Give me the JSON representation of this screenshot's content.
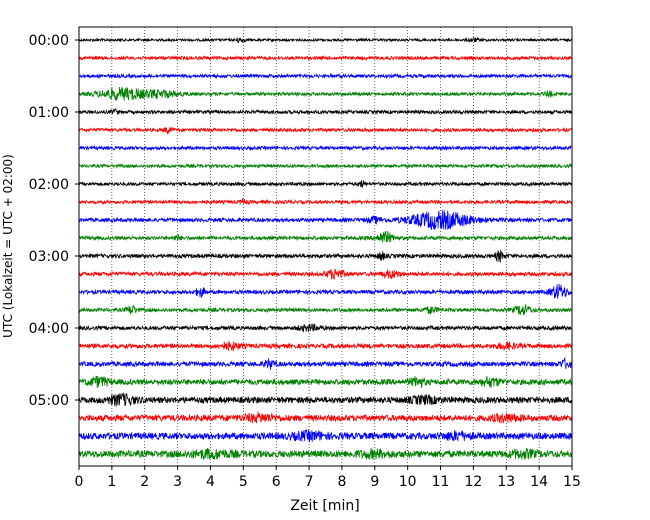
{
  "chart_data": {
    "type": "line",
    "xlabel": "Zeit  [min]",
    "ylabel": "UTC (Lokalzeit = UTC + 02:00)",
    "xlim": [
      0,
      15
    ],
    "x_ticks": [
      0,
      1,
      2,
      3,
      4,
      5,
      6,
      7,
      8,
      9,
      10,
      11,
      12,
      13,
      14,
      15
    ],
    "x_tick_labels": [
      "0",
      "1",
      "2",
      "3",
      "4",
      "5",
      "6",
      "7",
      "8",
      "9",
      "10",
      "11",
      "12",
      "13",
      "14",
      "15"
    ],
    "y_tick_labels": [
      "00:00",
      "01:00",
      "02:00",
      "03:00",
      "04:00",
      "05:00"
    ],
    "y_tick_trace_index": [
      0,
      4,
      8,
      12,
      16,
      20
    ],
    "grid": "vertical dotted at each minute",
    "trace_interval_min": 15,
    "trace_colors": [
      "#000000",
      "#ff0000",
      "#0000ff",
      "#008000"
    ],
    "traces": [
      {
        "start": "00:00",
        "color": "#000000",
        "noise": 0.22,
        "bursts": [
          [
            4.9,
            0.15,
            0.35
          ],
          [
            12.0,
            0.15,
            0.3
          ]
        ]
      },
      {
        "start": "00:15",
        "color": "#ff0000",
        "noise": 0.3,
        "bursts": []
      },
      {
        "start": "00:30",
        "color": "#0000ff",
        "noise": 0.3,
        "bursts": []
      },
      {
        "start": "00:45",
        "color": "#008000",
        "noise": 0.28,
        "bursts": [
          [
            1.3,
            0.7,
            1.0
          ],
          [
            2.5,
            0.6,
            0.55
          ],
          [
            14.3,
            0.1,
            0.5
          ]
        ]
      },
      {
        "start": "01:00",
        "color": "#000000",
        "noise": 0.3,
        "bursts": [
          [
            1.1,
            0.1,
            0.4
          ]
        ]
      },
      {
        "start": "01:15",
        "color": "#ff0000",
        "noise": 0.3,
        "bursts": [
          [
            2.7,
            0.1,
            0.5
          ]
        ]
      },
      {
        "start": "01:30",
        "color": "#0000ff",
        "noise": 0.3,
        "bursts": []
      },
      {
        "start": "01:45",
        "color": "#008000",
        "noise": 0.28,
        "bursts": []
      },
      {
        "start": "02:00",
        "color": "#000000",
        "noise": 0.3,
        "bursts": [
          [
            8.6,
            0.1,
            0.5
          ]
        ]
      },
      {
        "start": "02:15",
        "color": "#ff0000",
        "noise": 0.3,
        "bursts": [
          [
            5.0,
            0.1,
            0.4
          ]
        ]
      },
      {
        "start": "02:30",
        "color": "#0000ff",
        "noise": 0.35,
        "bursts": [
          [
            11.0,
            0.9,
            1.5
          ],
          [
            9.0,
            0.2,
            0.45
          ]
        ]
      },
      {
        "start": "02:45",
        "color": "#008000",
        "noise": 0.32,
        "bursts": [
          [
            9.3,
            0.25,
            1.0
          ],
          [
            3.0,
            0.1,
            0.4
          ]
        ]
      },
      {
        "start": "03:00",
        "color": "#000000",
        "noise": 0.35,
        "bursts": [
          [
            9.2,
            0.1,
            0.7
          ],
          [
            12.8,
            0.12,
            0.9
          ]
        ]
      },
      {
        "start": "03:15",
        "color": "#ff0000",
        "noise": 0.35,
        "bursts": [
          [
            7.8,
            0.25,
            0.8
          ],
          [
            9.5,
            0.25,
            0.6
          ]
        ]
      },
      {
        "start": "03:30",
        "color": "#0000ff",
        "noise": 0.35,
        "bursts": [
          [
            3.7,
            0.15,
            0.7
          ],
          [
            14.6,
            0.25,
            1.2
          ]
        ]
      },
      {
        "start": "03:45",
        "color": "#008000",
        "noise": 0.32,
        "bursts": [
          [
            1.6,
            0.15,
            0.7
          ],
          [
            13.5,
            0.25,
            0.8
          ],
          [
            10.7,
            0.2,
            0.5
          ]
        ]
      },
      {
        "start": "04:00",
        "color": "#000000",
        "noise": 0.35,
        "bursts": [
          [
            7.0,
            0.3,
            0.45
          ]
        ]
      },
      {
        "start": "04:15",
        "color": "#ff0000",
        "noise": 0.4,
        "bursts": [
          [
            4.6,
            0.3,
            0.55
          ],
          [
            13.0,
            0.3,
            0.45
          ]
        ]
      },
      {
        "start": "04:30",
        "color": "#0000ff",
        "noise": 0.42,
        "bursts": [
          [
            5.8,
            0.15,
            0.7
          ],
          [
            14.8,
            0.15,
            0.7
          ]
        ]
      },
      {
        "start": "04:45",
        "color": "#008000",
        "noise": 0.5,
        "bursts": [
          [
            0.6,
            0.3,
            0.7
          ],
          [
            10.3,
            0.2,
            0.7
          ],
          [
            12.5,
            0.3,
            0.6
          ]
        ]
      },
      {
        "start": "05:00",
        "color": "#000000",
        "noise": 0.55,
        "bursts": [
          [
            1.3,
            0.4,
            0.8
          ],
          [
            10.5,
            0.4,
            0.5
          ]
        ]
      },
      {
        "start": "05:15",
        "color": "#ff0000",
        "noise": 0.55,
        "bursts": [
          [
            5.5,
            0.5,
            0.5
          ],
          [
            13.0,
            0.4,
            0.5
          ]
        ]
      },
      {
        "start": "05:30",
        "color": "#0000ff",
        "noise": 0.6,
        "bursts": [
          [
            7.0,
            0.5,
            0.55
          ],
          [
            11.5,
            0.4,
            0.5
          ]
        ]
      },
      {
        "start": "05:45",
        "color": "#008000",
        "noise": 0.62,
        "bursts": [
          [
            4.0,
            0.6,
            0.5
          ],
          [
            9.0,
            0.5,
            0.45
          ],
          [
            13.5,
            0.4,
            0.5
          ]
        ]
      }
    ]
  }
}
